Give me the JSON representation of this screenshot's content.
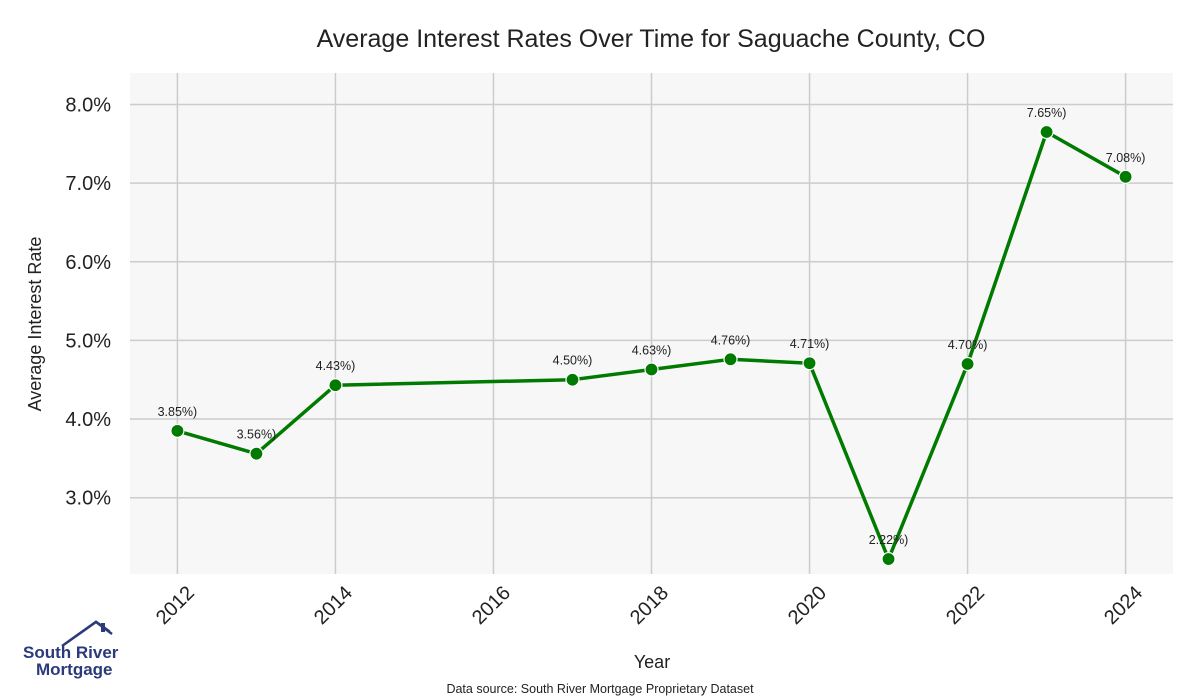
{
  "chart_data": {
    "type": "line",
    "title": "Average Interest Rates Over Time for Saguache County, CO",
    "xlabel": "Year",
    "ylabel": "Average Interest Rate",
    "x": [
      2012,
      2013,
      2014,
      2017,
      2018,
      2019,
      2020,
      2021,
      2022,
      2023,
      2024
    ],
    "series": [
      {
        "values": [
          3.85,
          3.56,
          4.43,
          4.5,
          4.63,
          4.76,
          4.71,
          2.22,
          4.7,
          7.65,
          7.08
        ],
        "labels": [
          "3.85%)",
          "3.56%)",
          "4.43%)",
          "4.50%)",
          "4.63%)",
          "4.76%)",
          "4.71%)",
          "2.22%)",
          "4.70%)",
          "7.65%)",
          "7.08%)"
        ]
      }
    ],
    "xticks": [
      2012,
      2014,
      2016,
      2018,
      2020,
      2022,
      2024
    ],
    "xtick_labels": [
      "2012",
      "2014",
      "2016",
      "2018",
      "2020",
      "2022",
      "2024"
    ],
    "yticks": [
      3,
      4,
      5,
      6,
      7,
      8
    ],
    "ytick_labels": [
      "3.0%",
      "4.0%",
      "5.0%",
      "6.0%",
      "7.0%",
      "8.0%"
    ],
    "xlim": [
      2011.4,
      2024.6
    ],
    "ylim": [
      2.03,
      8.4
    ],
    "grid": true,
    "line_color": "#007a00",
    "plot_background": "#f7f7f7",
    "grid_color": "#cccccc"
  },
  "logo": {
    "line1": "South River",
    "line2": "Mortgage",
    "color": "#2b3a7a"
  },
  "source_text": "Data source: South River Mortgage Proprietary Dataset"
}
